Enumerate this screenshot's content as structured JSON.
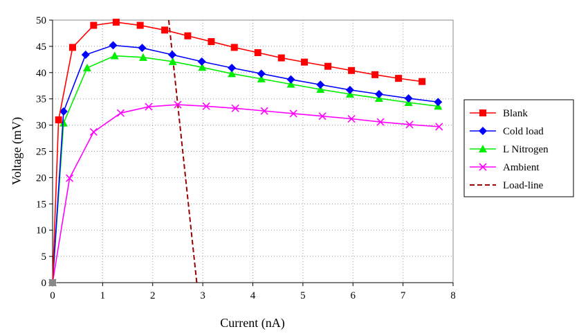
{
  "chart_data": {
    "type": "line",
    "title": "",
    "xlabel": "Current (nA)",
    "ylabel": "Voltage (mV)",
    "xlim": [
      0,
      8
    ],
    "ylim": [
      0,
      50
    ],
    "xticks": [
      "0",
      "1",
      "2",
      "3",
      "4",
      "5",
      "6",
      "7",
      "8"
    ],
    "yticks": [
      "0",
      "5",
      "10",
      "15",
      "20",
      "25",
      "30",
      "35",
      "40",
      "45",
      "50"
    ],
    "grid": true,
    "legend_position": "right",
    "series": [
      {
        "name": "Blank",
        "color": "#ff0000",
        "marker": "square",
        "dash": false,
        "x": [
          0,
          0.12,
          0.4,
          0.82,
          1.27,
          1.75,
          2.24,
          2.7,
          3.17,
          3.63,
          4.1,
          4.57,
          5.03,
          5.5,
          5.97,
          6.44,
          6.91,
          7.38
        ],
        "y": [
          0,
          31,
          44.8,
          49,
          49.6,
          49,
          48.1,
          47,
          45.9,
          44.8,
          43.8,
          42.8,
          42,
          41.2,
          40.4,
          39.6,
          38.9,
          38.3
        ]
      },
      {
        "name": "Cold load",
        "color": "#0000ff",
        "marker": "diamond",
        "dash": false,
        "x": [
          0,
          0.22,
          0.66,
          1.21,
          1.79,
          2.39,
          2.98,
          3.58,
          4.17,
          4.76,
          5.35,
          5.94,
          6.52,
          7.11,
          7.7
        ],
        "y": [
          0,
          32.6,
          43.4,
          45.2,
          44.7,
          43.4,
          42.1,
          40.9,
          39.8,
          38.7,
          37.7,
          36.7,
          35.9,
          35.1,
          34.4
        ]
      },
      {
        "name": "L Nitrogen",
        "color": "#00ee00",
        "marker": "triangle",
        "dash": false,
        "x": [
          0,
          0.22,
          0.69,
          1.24,
          1.81,
          2.4,
          2.99,
          3.58,
          4.17,
          4.76,
          5.35,
          5.94,
          6.52,
          7.11,
          7.7
        ],
        "y": [
          0,
          30.4,
          40.9,
          43.2,
          42.9,
          42.1,
          41,
          39.8,
          38.8,
          37.8,
          36.8,
          35.9,
          35.1,
          34.3,
          33.6
        ]
      },
      {
        "name": "Ambient",
        "color": "#ff00ff",
        "marker": "x",
        "dash": false,
        "x": [
          0,
          0.34,
          0.82,
          1.36,
          1.92,
          2.5,
          3.07,
          3.65,
          4.23,
          4.81,
          5.39,
          5.97,
          6.55,
          7.13,
          7.72
        ],
        "y": [
          0,
          19.9,
          28.7,
          32.3,
          33.5,
          33.9,
          33.6,
          33.2,
          32.7,
          32.2,
          31.7,
          31.2,
          30.6,
          30.1,
          29.7
        ]
      },
      {
        "name": "Load-line",
        "color": "#990000",
        "marker": "none",
        "dash": true,
        "x": [
          2.32,
          2.88
        ],
        "y": [
          50,
          0
        ]
      }
    ]
  }
}
